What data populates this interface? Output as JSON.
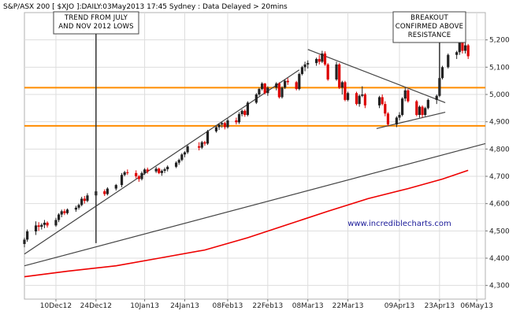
{
  "header": {
    "title": "S&P/ASX 200 [ $XJO ]:DAILY:03May2013 17:45 Sydney : Data Delayed > 20mins"
  },
  "watermark": "www.incrediblecharts.com",
  "colors": {
    "price_up": "#222222",
    "price_down": "#dd0000",
    "moving_average": "#ee0000",
    "support_resistance": "#ff8c00",
    "trendline": "#444444",
    "annotation_text": "#000000",
    "grid": "#dddddd"
  },
  "chart_data": {
    "type": "candlestick",
    "title": "S&P/ASX 200 [ $XJO ]:DAILY:03May2013 17:45 Sydney : Data Delayed > 20mins",
    "xlabel": "",
    "ylabel": "",
    "ylim": [
      4250,
      5300
    ],
    "yticks": [
      4300,
      4400,
      4500,
      4600,
      4700,
      4800,
      4900,
      5000,
      5100,
      5200
    ],
    "ytick_labels": [
      "4,300",
      "4,400",
      "4,500",
      "4,600",
      "4,700",
      "4,800",
      "4,900",
      "5,000",
      "5,100",
      "5,200"
    ],
    "x_start": "2012-11-29",
    "x_end": "2013-05-09",
    "xticks": [
      {
        "date": "2012-12-10",
        "label": "10Dec12"
      },
      {
        "date": "2012-12-24",
        "label": "24Dec12"
      },
      {
        "date": "2013-01-10",
        "label": "10Jan13"
      },
      {
        "date": "2013-01-24",
        "label": "24Jan13"
      },
      {
        "date": "2013-02-08",
        "label": "08Feb13"
      },
      {
        "date": "2013-02-22",
        "label": "22Feb13"
      },
      {
        "date": "2013-03-08",
        "label": "08Mar13"
      },
      {
        "date": "2013-03-22",
        "label": "22Mar13"
      },
      {
        "date": "2013-04-09",
        "label": "09Apr13"
      },
      {
        "date": "2013-04-23",
        "label": "23Apr13"
      },
      {
        "date": "2013-05-06",
        "label": "06May13"
      }
    ],
    "grid": true,
    "candles": [
      {
        "date": "2012-11-29",
        "open": 4452,
        "high": 4475,
        "low": 4440,
        "close": 4468
      },
      {
        "date": "2012-11-30",
        "open": 4468,
        "high": 4505,
        "low": 4460,
        "close": 4498
      },
      {
        "date": "2012-12-03",
        "open": 4498,
        "high": 4535,
        "low": 4485,
        "close": 4520
      },
      {
        "date": "2012-12-04",
        "open": 4520,
        "high": 4532,
        "low": 4500,
        "close": 4515
      },
      {
        "date": "2012-12-05",
        "open": 4515,
        "high": 4528,
        "low": 4505,
        "close": 4522
      },
      {
        "date": "2012-12-06",
        "open": 4522,
        "high": 4540,
        "low": 4510,
        "close": 4530
      },
      {
        "date": "2012-12-07",
        "open": 4530,
        "high": 4535,
        "low": 4512,
        "close": 4520
      },
      {
        "date": "2012-12-10",
        "open": 4520,
        "high": 4548,
        "low": 4515,
        "close": 4540
      },
      {
        "date": "2012-12-11",
        "open": 4540,
        "high": 4565,
        "low": 4532,
        "close": 4560
      },
      {
        "date": "2012-12-12",
        "open": 4560,
        "high": 4578,
        "low": 4550,
        "close": 4572
      },
      {
        "date": "2012-12-13",
        "open": 4572,
        "high": 4580,
        "low": 4558,
        "close": 4565
      },
      {
        "date": "2012-12-14",
        "open": 4565,
        "high": 4582,
        "low": 4560,
        "close": 4578
      },
      {
        "date": "2012-12-17",
        "open": 4578,
        "high": 4592,
        "low": 4570,
        "close": 4585
      },
      {
        "date": "2012-12-18",
        "open": 4585,
        "high": 4600,
        "low": 4578,
        "close": 4595
      },
      {
        "date": "2012-12-19",
        "open": 4595,
        "high": 4625,
        "low": 4590,
        "close": 4618
      },
      {
        "date": "2012-12-20",
        "open": 4618,
        "high": 4628,
        "low": 4600,
        "close": 4610
      },
      {
        "date": "2012-12-21",
        "open": 4610,
        "high": 4638,
        "low": 4605,
        "close": 4630
      },
      {
        "date": "2012-12-24",
        "open": 4630,
        "high": 4650,
        "low": 4625,
        "close": 4645
      },
      {
        "date": "2012-12-27",
        "open": 4645,
        "high": 4652,
        "low": 4628,
        "close": 4635
      },
      {
        "date": "2012-12-28",
        "open": 4635,
        "high": 4660,
        "low": 4630,
        "close": 4655
      },
      {
        "date": "2012-12-31",
        "open": 4655,
        "high": 4672,
        "low": 4648,
        "close": 4668
      },
      {
        "date": "2013-01-02",
        "open": 4668,
        "high": 4712,
        "low": 4660,
        "close": 4705
      },
      {
        "date": "2013-01-03",
        "open": 4705,
        "high": 4720,
        "low": 4700,
        "close": 4715
      },
      {
        "date": "2013-01-04",
        "open": 4715,
        "high": 4725,
        "low": 4705,
        "close": 4712
      },
      {
        "date": "2013-01-07",
        "open": 4712,
        "high": 4722,
        "low": 4692,
        "close": 4700
      },
      {
        "date": "2013-01-08",
        "open": 4700,
        "high": 4705,
        "low": 4680,
        "close": 4690
      },
      {
        "date": "2013-01-09",
        "open": 4690,
        "high": 4718,
        "low": 4685,
        "close": 4712
      },
      {
        "date": "2013-01-10",
        "open": 4712,
        "high": 4730,
        "low": 4705,
        "close": 4725
      },
      {
        "date": "2013-01-11",
        "open": 4725,
        "high": 4732,
        "low": 4710,
        "close": 4718
      },
      {
        "date": "2013-01-14",
        "open": 4718,
        "high": 4735,
        "low": 4712,
        "close": 4728
      },
      {
        "date": "2013-01-15",
        "open": 4728,
        "high": 4732,
        "low": 4708,
        "close": 4712
      },
      {
        "date": "2013-01-16",
        "open": 4712,
        "high": 4725,
        "low": 4702,
        "close": 4720
      },
      {
        "date": "2013-01-17",
        "open": 4720,
        "high": 4732,
        "low": 4712,
        "close": 4726
      },
      {
        "date": "2013-01-18",
        "open": 4726,
        "high": 4740,
        "low": 4718,
        "close": 4735
      },
      {
        "date": "2013-01-21",
        "open": 4735,
        "high": 4755,
        "low": 4730,
        "close": 4750
      },
      {
        "date": "2013-01-22",
        "open": 4750,
        "high": 4765,
        "low": 4742,
        "close": 4760
      },
      {
        "date": "2013-01-23",
        "open": 4760,
        "high": 4785,
        "low": 4755,
        "close": 4780
      },
      {
        "date": "2013-01-24",
        "open": 4780,
        "high": 4792,
        "low": 4770,
        "close": 4788
      },
      {
        "date": "2013-01-25",
        "open": 4788,
        "high": 4815,
        "low": 4782,
        "close": 4810
      },
      {
        "date": "2013-01-29",
        "open": 4810,
        "high": 4825,
        "low": 4795,
        "close": 4805
      },
      {
        "date": "2013-01-30",
        "open": 4805,
        "high": 4830,
        "low": 4800,
        "close": 4825
      },
      {
        "date": "2013-01-31",
        "open": 4825,
        "high": 4830,
        "low": 4812,
        "close": 4820
      },
      {
        "date": "2013-02-01",
        "open": 4820,
        "high": 4870,
        "low": 4815,
        "close": 4865
      },
      {
        "date": "2013-02-04",
        "open": 4865,
        "high": 4885,
        "low": 4860,
        "close": 4880
      },
      {
        "date": "2013-02-05",
        "open": 4880,
        "high": 4895,
        "low": 4870,
        "close": 4890
      },
      {
        "date": "2013-02-06",
        "open": 4890,
        "high": 4900,
        "low": 4878,
        "close": 4895
      },
      {
        "date": "2013-02-07",
        "open": 4895,
        "high": 4900,
        "low": 4872,
        "close": 4880
      },
      {
        "date": "2013-02-08",
        "open": 4880,
        "high": 4912,
        "low": 4875,
        "close": 4905
      },
      {
        "date": "2013-02-11",
        "open": 4905,
        "high": 4915,
        "low": 4890,
        "close": 4898
      },
      {
        "date": "2013-02-12",
        "open": 4898,
        "high": 4935,
        "low": 4892,
        "close": 4928
      },
      {
        "date": "2013-02-13",
        "open": 4928,
        "high": 4945,
        "low": 4920,
        "close": 4940
      },
      {
        "date": "2013-02-14",
        "open": 4940,
        "high": 4945,
        "low": 4918,
        "close": 4925
      },
      {
        "date": "2013-02-15",
        "open": 4925,
        "high": 4975,
        "low": 4920,
        "close": 4970
      },
      {
        "date": "2013-02-18",
        "open": 4970,
        "high": 5005,
        "low": 4965,
        "close": 5000
      },
      {
        "date": "2013-02-19",
        "open": 5000,
        "high": 5025,
        "low": 4995,
        "close": 5020
      },
      {
        "date": "2013-02-20",
        "open": 5020,
        "high": 5045,
        "low": 5015,
        "close": 5040
      },
      {
        "date": "2013-02-21",
        "open": 5040,
        "high": 5042,
        "low": 5000,
        "close": 5005
      },
      {
        "date": "2013-02-22",
        "open": 5005,
        "high": 5030,
        "low": 4995,
        "close": 5025
      },
      {
        "date": "2013-02-25",
        "open": 5025,
        "high": 5045,
        "low": 5015,
        "close": 5040
      },
      {
        "date": "2013-02-26",
        "open": 5040,
        "high": 5045,
        "low": 4985,
        "close": 4990
      },
      {
        "date": "2013-02-27",
        "open": 4990,
        "high": 5030,
        "low": 4985,
        "close": 5025
      },
      {
        "date": "2013-02-28",
        "open": 5025,
        "high": 5055,
        "low": 5020,
        "close": 5050
      },
      {
        "date": "2013-03-01",
        "open": 5050,
        "high": 5060,
        "low": 5035,
        "close": 5045
      },
      {
        "date": "2013-03-04",
        "open": 5045,
        "high": 5050,
        "low": 5015,
        "close": 5020
      },
      {
        "date": "2013-03-05",
        "open": 5020,
        "high": 5080,
        "low": 5015,
        "close": 5075
      },
      {
        "date": "2013-03-06",
        "open": 5075,
        "high": 5105,
        "low": 5070,
        "close": 5100
      },
      {
        "date": "2013-03-07",
        "open": 5100,
        "high": 5120,
        "low": 5085,
        "close": 5110
      },
      {
        "date": "2013-03-08",
        "open": 5110,
        "high": 5125,
        "low": 5095,
        "close": 5115
      },
      {
        "date": "2013-03-11",
        "open": 5115,
        "high": 5135,
        "low": 5105,
        "close": 5130
      },
      {
        "date": "2013-03-12",
        "open": 5130,
        "high": 5145,
        "low": 5110,
        "close": 5120
      },
      {
        "date": "2013-03-13",
        "open": 5120,
        "high": 5160,
        "low": 5115,
        "close": 5150
      },
      {
        "date": "2013-03-14",
        "open": 5150,
        "high": 5158,
        "low": 5105,
        "close": 5110
      },
      {
        "date": "2013-03-15",
        "open": 5110,
        "high": 5115,
        "low": 5050,
        "close": 5055
      },
      {
        "date": "2013-03-18",
        "open": 5055,
        "high": 5120,
        "low": 5050,
        "close": 5110
      },
      {
        "date": "2013-03-19",
        "open": 5110,
        "high": 5115,
        "low": 5020,
        "close": 5025
      },
      {
        "date": "2013-03-20",
        "open": 5025,
        "high": 5050,
        "low": 5000,
        "close": 5045
      },
      {
        "date": "2013-03-21",
        "open": 5045,
        "high": 5050,
        "low": 4975,
        "close": 4980
      },
      {
        "date": "2013-03-22",
        "open": 4980,
        "high": 5010,
        "low": 4975,
        "close": 5005
      },
      {
        "date": "2013-03-25",
        "open": 5005,
        "high": 5010,
        "low": 4960,
        "close": 4965
      },
      {
        "date": "2013-03-26",
        "open": 4965,
        "high": 5000,
        "low": 4955,
        "close": 4995
      },
      {
        "date": "2013-03-27",
        "open": 4995,
        "high": 5030,
        "low": 4990,
        "close": 5000
      },
      {
        "date": "2013-03-28",
        "open": 5000,
        "high": 5005,
        "low": 4950,
        "close": 4960
      },
      {
        "date": "2013-04-02",
        "open": 4960,
        "high": 4995,
        "low": 4950,
        "close": 4990
      },
      {
        "date": "2013-04-03",
        "open": 4990,
        "high": 5000,
        "low": 4960,
        "close": 4965
      },
      {
        "date": "2013-04-04",
        "open": 4965,
        "high": 4975,
        "low": 4920,
        "close": 4930
      },
      {
        "date": "2013-04-05",
        "open": 4930,
        "high": 4935,
        "low": 4885,
        "close": 4890
      },
      {
        "date": "2013-04-08",
        "open": 4890,
        "high": 4920,
        "low": 4880,
        "close": 4915
      },
      {
        "date": "2013-04-09",
        "open": 4915,
        "high": 4935,
        "low": 4905,
        "close": 4925
      },
      {
        "date": "2013-04-10",
        "open": 4925,
        "high": 4990,
        "low": 4920,
        "close": 4985
      },
      {
        "date": "2013-04-11",
        "open": 4985,
        "high": 5025,
        "low": 4975,
        "close": 5015
      },
      {
        "date": "2013-04-12",
        "open": 5015,
        "high": 5020,
        "low": 4970,
        "close": 4975
      },
      {
        "date": "2013-04-15",
        "open": 4975,
        "high": 4980,
        "low": 4920,
        "close": 4925
      },
      {
        "date": "2013-04-16",
        "open": 4925,
        "high": 4960,
        "low": 4915,
        "close": 4955
      },
      {
        "date": "2013-04-17",
        "open": 4955,
        "high": 4960,
        "low": 4915,
        "close": 4925
      },
      {
        "date": "2013-04-18",
        "open": 4925,
        "high": 4955,
        "low": 4920,
        "close": 4950
      },
      {
        "date": "2013-04-19",
        "open": 4950,
        "high": 4985,
        "low": 4945,
        "close": 4980
      },
      {
        "date": "2013-04-22",
        "open": 4980,
        "high": 5000,
        "low": 4965,
        "close": 4995
      },
      {
        "date": "2013-04-23",
        "open": 4995,
        "high": 5065,
        "low": 4990,
        "close": 5060
      },
      {
        "date": "2013-04-24",
        "open": 5060,
        "high": 5105,
        "low": 5055,
        "close": 5100
      },
      {
        "date": "2013-04-26",
        "open": 5100,
        "high": 5150,
        "low": 5095,
        "close": 5145
      },
      {
        "date": "2013-04-29",
        "open": 5145,
        "high": 5160,
        "low": 5130,
        "close": 5155
      },
      {
        "date": "2013-04-30",
        "open": 5155,
        "high": 5195,
        "low": 5145,
        "close": 5190
      },
      {
        "date": "2013-05-01",
        "open": 5190,
        "high": 5200,
        "low": 5150,
        "close": 5160
      },
      {
        "date": "2013-05-02",
        "open": 5160,
        "high": 5190,
        "low": 5150,
        "close": 5180
      },
      {
        "date": "2013-05-03",
        "open": 5180,
        "high": 5185,
        "low": 5130,
        "close": 5140
      }
    ],
    "moving_average": [
      {
        "date": "2012-11-29",
        "value": 4332
      },
      {
        "date": "2012-12-14",
        "value": 4352
      },
      {
        "date": "2012-12-31",
        "value": 4372
      },
      {
        "date": "2013-01-15",
        "value": 4400
      },
      {
        "date": "2013-01-31",
        "value": 4430
      },
      {
        "date": "2013-02-15",
        "value": 4475
      },
      {
        "date": "2013-02-28",
        "value": 4520
      },
      {
        "date": "2013-03-15",
        "value": 4572
      },
      {
        "date": "2013-03-29",
        "value": 4618
      },
      {
        "date": "2013-04-12",
        "value": 4655
      },
      {
        "date": "2013-04-24",
        "value": 4690
      },
      {
        "date": "2013-05-03",
        "value": 4722
      }
    ],
    "horizontal_lines": [
      {
        "value": 5025,
        "color": "#ff8c00"
      },
      {
        "value": 4885,
        "color": "#ff8c00"
      }
    ],
    "trendlines": [
      {
        "from": {
          "date": "2012-11-29",
          "value": 4415
        },
        "to": {
          "date": "2013-03-05",
          "value": 5090
        }
      },
      {
        "from": {
          "date": "2012-11-29",
          "value": 4372
        },
        "to": {
          "date": "2013-05-09",
          "value": 4820
        }
      },
      {
        "from": {
          "date": "2013-03-08",
          "value": 5165
        },
        "to": {
          "date": "2013-04-25",
          "value": 4970
        }
      },
      {
        "from": {
          "date": "2013-04-01",
          "value": 4875
        },
        "to": {
          "date": "2013-04-25",
          "value": 4935
        }
      }
    ],
    "annotations": [
      {
        "lines": [
          "TREND FROM JULY",
          "AND NOV 2012 LOWS"
        ],
        "arrow_to": {
          "date": "2012-12-24",
          "value": 4455
        }
      },
      {
        "lines": [
          "BREAKOUT",
          "CONFIRMED ABOVE",
          "RESISTANCE"
        ],
        "arrow_to": {
          "date": "2013-04-23",
          "value": 5000
        }
      }
    ]
  }
}
